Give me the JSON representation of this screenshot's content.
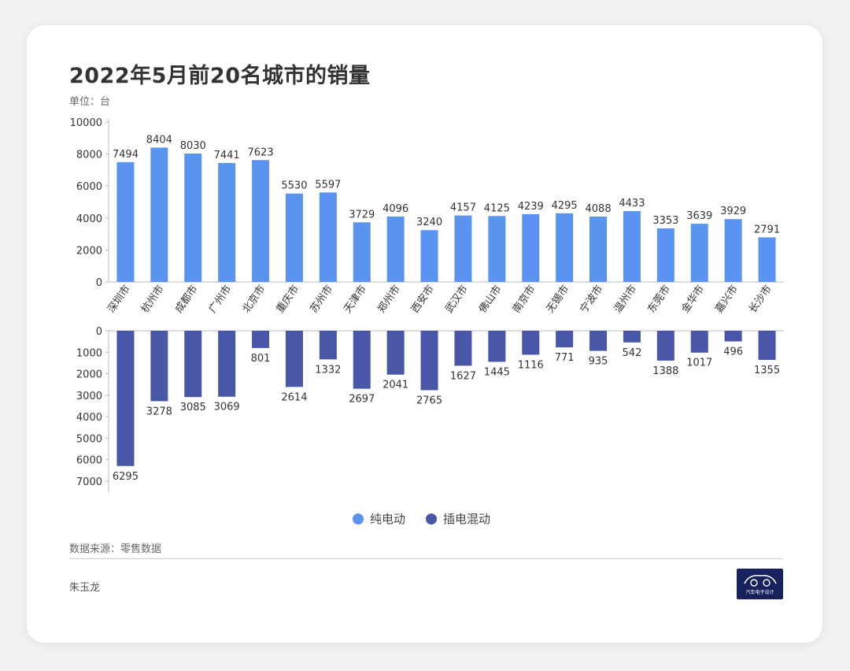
{
  "title": "2022年5月前20名城市的销量",
  "unit": "单位：台",
  "source": "数据来源：零售数据",
  "author": "朱玉龙",
  "logo_text": "汽车电子设计",
  "colors": {
    "ev": "#5b93f0",
    "phev": "#4857a8"
  },
  "chart_data": {
    "type": "bar",
    "categories": [
      "深圳市",
      "杭州市",
      "成都市",
      "广州市",
      "北京市",
      "重庆市",
      "苏州市",
      "天津市",
      "郑州市",
      "西安市",
      "武汉市",
      "佛山市",
      "南京市",
      "无锡市",
      "宁波市",
      "温州市",
      "东莞市",
      "金华市",
      "嘉兴市",
      "长沙市"
    ],
    "series": [
      {
        "name": "纯电动",
        "values": [
          7494,
          8404,
          8030,
          7441,
          7623,
          5530,
          5597,
          3729,
          4096,
          3240,
          4157,
          4125,
          4239,
          4295,
          4088,
          4433,
          3353,
          3639,
          3929,
          2791
        ]
      },
      {
        "name": "插电混动",
        "values": [
          6295,
          3278,
          3085,
          3069,
          801,
          2614,
          1332,
          2697,
          2041,
          2765,
          1627,
          1445,
          1116,
          771,
          935,
          542,
          1388,
          1017,
          496,
          1355
        ]
      }
    ],
    "top_axis": {
      "ylim": [
        0,
        10000
      ],
      "ticks": [
        "0",
        "2000",
        "4000",
        "6000",
        "8000",
        "10000"
      ]
    },
    "bottom_axis": {
      "ylim": [
        0,
        7000
      ],
      "ticks": [
        "0",
        "1000",
        "2000",
        "3000",
        "4000",
        "5000",
        "6000",
        "7000"
      ],
      "inverted": true
    },
    "legend_position": "bottom-center"
  }
}
